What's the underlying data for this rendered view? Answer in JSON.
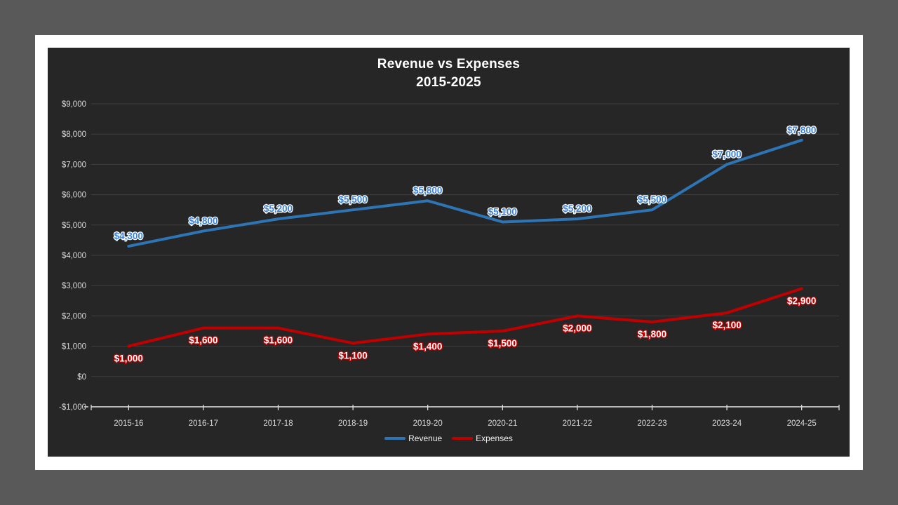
{
  "page": {
    "background_color": "#595959",
    "slide_background": "#FFFFFF",
    "chart_background": "#262626",
    "gridline_color": "#3F3F3F",
    "axis_line_color": "#E8E8E8",
    "axis_text_color": "#D9D9D9"
  },
  "chart_data": {
    "type": "line",
    "title": "Revenue vs Expenses",
    "subtitle": "2015-2025",
    "categories": [
      "2015-16",
      "2016-17",
      "2017-18",
      "2018-19",
      "2019-20",
      "2020-21",
      "2021-22",
      "2022-23",
      "2023-24",
      "2024-25"
    ],
    "series": [
      {
        "name": "Revenue",
        "color": "#2E75B6",
        "label_text_color": "#3C82D9",
        "label_outline_color": "#FFFFFF",
        "label_position": "above",
        "values": [
          4300,
          4800,
          5200,
          5500,
          5800,
          5100,
          5200,
          5500,
          7000,
          7800
        ],
        "labels": [
          "$4,300",
          "$4,800",
          "$5,200",
          "$5,500",
          "$5,800",
          "$5,100",
          "$5,200",
          "$5,500",
          "$7,000",
          "$7,800"
        ]
      },
      {
        "name": "Expenses",
        "color": "#C00000",
        "label_text_color": "#FFFFFF",
        "label_outline_color": "#C00000",
        "label_position": "below",
        "values": [
          1000,
          1600,
          1600,
          1100,
          1400,
          1500,
          2000,
          1800,
          2100,
          2900
        ],
        "labels": [
          "$1,000",
          "$1,600",
          "$1,600",
          "$1,100",
          "$1,400",
          "$1,500",
          "$2,000",
          "$1,800",
          "$2,100",
          "$2,900"
        ]
      }
    ],
    "y_axis": {
      "min": -1000,
      "max": 9000,
      "step": 1000,
      "tick_labels_top_to_bottom": [
        "$9,000",
        "$8,000",
        "$7,000",
        "$6,000",
        "$5,000",
        "$4,000",
        "$3,000",
        "$2,000",
        "$1,000",
        "$0",
        "-$1,000"
      ]
    },
    "grid": true,
    "legend_position": "bottom"
  }
}
